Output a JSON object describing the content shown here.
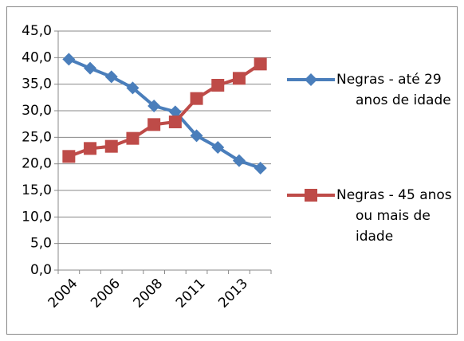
{
  "chart_data": {
    "type": "line",
    "categories": [
      "2004",
      null,
      "2006",
      null,
      "2008",
      null,
      "2011",
      null,
      "2013",
      null
    ],
    "series": [
      {
        "name": "Negras - até 29 anos de idade",
        "color": "#4a7ebb",
        "marker": "diamond",
        "values": [
          39.7,
          38.0,
          36.4,
          34.3,
          30.9,
          29.8,
          25.3,
          23.1,
          20.6,
          19.2
        ]
      },
      {
        "name": "Negras - 45 anos ou mais de idade",
        "color": "#be4b48",
        "marker": "square",
        "values": [
          21.4,
          22.9,
          23.3,
          24.8,
          27.4,
          27.9,
          32.3,
          34.8,
          36.1,
          38.8
        ]
      }
    ],
    "ylim": [
      0,
      45
    ],
    "yticks": [
      {
        "value": 0,
        "label": "0,0"
      },
      {
        "value": 5,
        "label": "5,0"
      },
      {
        "value": 10,
        "label": "10,0"
      },
      {
        "value": 15,
        "label": "15,0"
      },
      {
        "value": 20,
        "label": "20,0"
      },
      {
        "value": 25,
        "label": "25,0"
      },
      {
        "value": 30,
        "label": "30,0"
      },
      {
        "value": 35,
        "label": "35,0"
      },
      {
        "value": 40,
        "label": "40,0"
      },
      {
        "value": 45,
        "label": "45,0"
      }
    ],
    "grid": true,
    "legend": "right"
  }
}
